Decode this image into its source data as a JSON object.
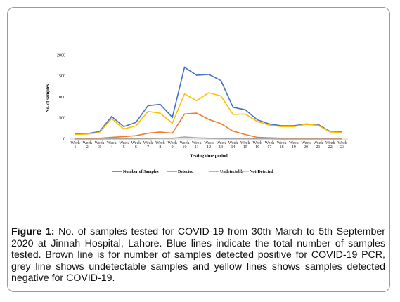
{
  "chart_data": {
    "type": "line",
    "ylabel": "No. of samples",
    "xlabel": "Testing time period",
    "categories": [
      "Week 1",
      "Week 2",
      "Week 3",
      "Week 4",
      "Week 5",
      "Week 6",
      "Week 7",
      "Week 8",
      "Week 9",
      "Week 10",
      "Week 11",
      "Week 12",
      "Week 13",
      "Week 14",
      "Week 15",
      "Week 16",
      "Week 17",
      "Week 18",
      "Week 19",
      "Week 20",
      "Week 21",
      "Week 22",
      "Week 23"
    ],
    "series": [
      {
        "name": "Number of Samples",
        "color": "#4472c4",
        "values": [
          120,
          130,
          180,
          540,
          300,
          400,
          800,
          830,
          520,
          1720,
          1530,
          1550,
          1400,
          760,
          700,
          460,
          360,
          320,
          320,
          360,
          350,
          180,
          170
        ]
      },
      {
        "name": "Detected",
        "color": "#ed7d31",
        "values": [
          10,
          10,
          20,
          40,
          60,
          80,
          140,
          170,
          140,
          600,
          620,
          470,
          370,
          190,
          110,
          40,
          30,
          20,
          20,
          10,
          10,
          5,
          5
        ]
      },
      {
        "name": "Undetectable",
        "color": "#a5a5a5",
        "values": [
          0,
          0,
          0,
          5,
          5,
          5,
          10,
          20,
          20,
          50,
          30,
          20,
          10,
          5,
          5,
          5,
          5,
          0,
          0,
          0,
          0,
          0,
          0
        ]
      },
      {
        "name": "Not-Detected",
        "color": "#ffc000",
        "values": [
          110,
          120,
          160,
          490,
          240,
          320,
          660,
          620,
          380,
          1080,
          920,
          1110,
          1030,
          590,
          600,
          420,
          330,
          300,
          300,
          350,
          330,
          170,
          160
        ]
      }
    ],
    "ylim": [
      0,
      2000
    ],
    "yticks": [
      0,
      500,
      1000,
      1500,
      2000
    ],
    "grid": false
  },
  "caption": {
    "label": "Figure 1:",
    "text": " No. of samples tested for COVID-19 from 30th March to 5th September 2020 at Jinnah Hospital, Lahore. Blue lines indicate the total number of samples tested. Brown line is for number of samples detected positive for COVID-19 PCR, grey line shows undetectable samples and yellow lines shows samples detected negative for COVID-19."
  }
}
